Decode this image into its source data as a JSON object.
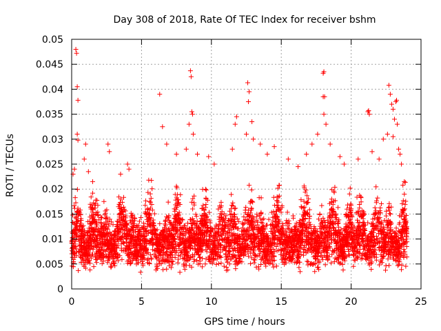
{
  "chart_data": {
    "type": "scatter",
    "title": "Day 308 of 2018, Rate Of TEC Index for receiver bshm",
    "xlabel": "GPS time / hours",
    "ylabel": "ROTI / TECUs",
    "xlim": [
      0,
      25
    ],
    "ylim": [
      0,
      0.05
    ],
    "x_ticks": [
      0,
      5,
      10,
      15,
      20,
      25
    ],
    "x_tick_labels": [
      "0",
      "5",
      "10",
      "15",
      "20",
      "25"
    ],
    "y_ticks": [
      0,
      0.005,
      0.01,
      0.015,
      0.02,
      0.025,
      0.03,
      0.035,
      0.04,
      0.045,
      0.05
    ],
    "y_tick_labels": [
      "0",
      "0.005",
      "0.01",
      "0.015",
      "0.02",
      "0.025",
      "0.03",
      "0.035",
      "0.04",
      "0.045",
      "0.05"
    ],
    "grid": true,
    "marker": "+",
    "color": "#ff0000",
    "series": [
      {
        "name": "ROTI",
        "points": [
          [
            0.3,
            0.048
          ],
          [
            0.35,
            0.0472
          ],
          [
            0.4,
            0.0405
          ],
          [
            0.45,
            0.0378
          ],
          [
            0.4,
            0.031
          ],
          [
            0.45,
            0.0298
          ],
          [
            0.2,
            0.024
          ],
          [
            0.1,
            0.023
          ],
          [
            1.0,
            0.029
          ],
          [
            0.9,
            0.026
          ],
          [
            1.2,
            0.0235
          ],
          [
            2.6,
            0.029
          ],
          [
            2.7,
            0.0275
          ],
          [
            3.5,
            0.023
          ],
          [
            4.0,
            0.025
          ],
          [
            4.1,
            0.024
          ],
          [
            6.3,
            0.039
          ],
          [
            6.5,
            0.0325
          ],
          [
            6.8,
            0.029
          ],
          [
            7.5,
            0.027
          ],
          [
            8.5,
            0.0437
          ],
          [
            8.55,
            0.0425
          ],
          [
            8.6,
            0.0355
          ],
          [
            8.65,
            0.035
          ],
          [
            8.4,
            0.033
          ],
          [
            8.7,
            0.031
          ],
          [
            8.2,
            0.028
          ],
          [
            9.0,
            0.027
          ],
          [
            9.8,
            0.0265
          ],
          [
            10.2,
            0.025
          ],
          [
            11.5,
            0.028
          ],
          [
            11.7,
            0.033
          ],
          [
            11.8,
            0.0345
          ],
          [
            12.5,
            0.031
          ],
          [
            12.6,
            0.0413
          ],
          [
            12.7,
            0.0395
          ],
          [
            12.65,
            0.0375
          ],
          [
            12.9,
            0.0335
          ],
          [
            13.0,
            0.03
          ],
          [
            13.5,
            0.029
          ],
          [
            14.0,
            0.027
          ],
          [
            14.5,
            0.0285
          ],
          [
            15.5,
            0.026
          ],
          [
            16.2,
            0.0245
          ],
          [
            16.8,
            0.027
          ],
          [
            17.2,
            0.029
          ],
          [
            17.6,
            0.031
          ],
          [
            18.0,
            0.0432
          ],
          [
            18.05,
            0.0435
          ],
          [
            18.0,
            0.0385
          ],
          [
            18.1,
            0.0385
          ],
          [
            18.05,
            0.035
          ],
          [
            18.2,
            0.033
          ],
          [
            18.5,
            0.029
          ],
          [
            19.2,
            0.0265
          ],
          [
            19.5,
            0.025
          ],
          [
            20.5,
            0.026
          ],
          [
            21.2,
            0.0355
          ],
          [
            21.25,
            0.0357
          ],
          [
            21.3,
            0.035
          ],
          [
            21.5,
            0.0275
          ],
          [
            22.0,
            0.026
          ],
          [
            22.3,
            0.03
          ],
          [
            22.7,
            0.0408
          ],
          [
            22.8,
            0.039
          ],
          [
            22.9,
            0.037
          ],
          [
            23.0,
            0.036
          ],
          [
            23.1,
            0.034
          ],
          [
            23.2,
            0.0375
          ],
          [
            23.25,
            0.0378
          ],
          [
            23.3,
            0.033
          ],
          [
            22.6,
            0.031
          ],
          [
            23.0,
            0.0305
          ],
          [
            23.4,
            0.028
          ],
          [
            23.5,
            0.027
          ],
          [
            23.6,
            0.025
          ],
          [
            23.8,
            0.0215
          ],
          [
            23.9,
            0.0135
          ],
          [
            23.95,
            0.01
          ],
          [
            23.85,
            0.007
          ]
        ]
      }
    ],
    "dense_band": {
      "description": "dense cloud of ROTI samples across the full day",
      "x_range": [
        0,
        24
      ],
      "typical_low": 0.003,
      "typical_high": 0.025,
      "count": 4200
    }
  }
}
